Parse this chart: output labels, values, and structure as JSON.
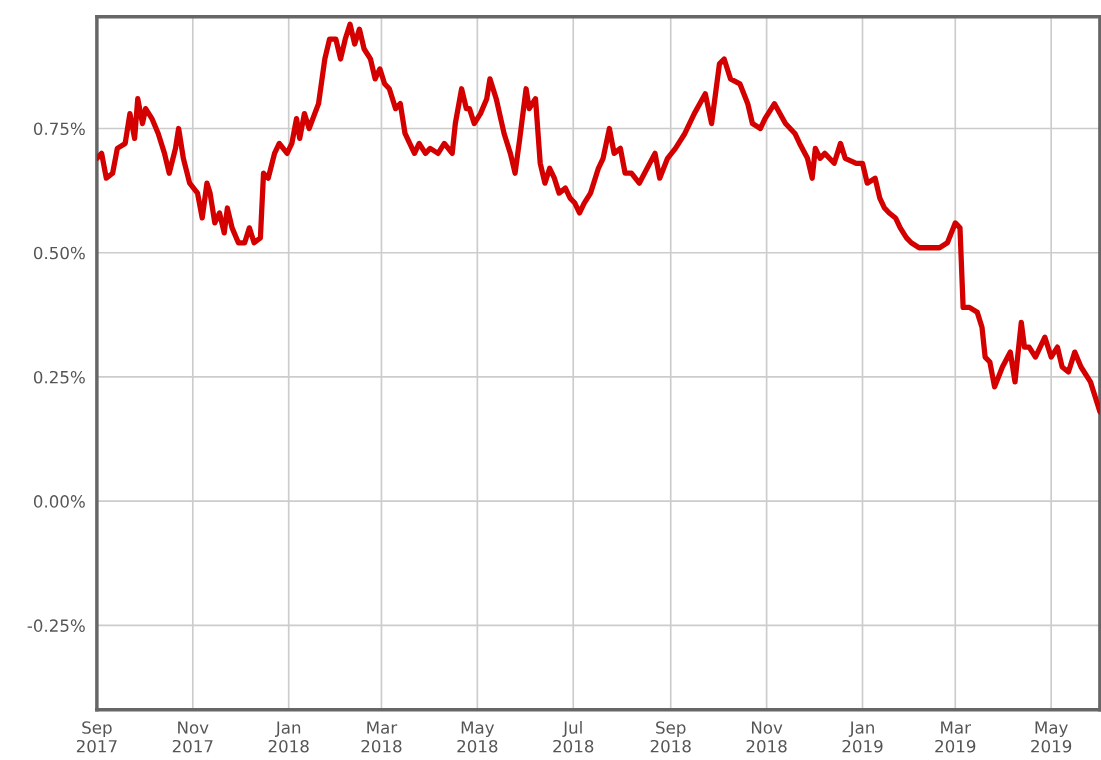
{
  "chart_data": {
    "type": "line",
    "x": [
      "2017-09-01",
      "2017-09-04",
      "2017-09-07",
      "2017-09-11",
      "2017-09-14",
      "2017-09-19",
      "2017-09-22",
      "2017-09-25",
      "2017-09-27",
      "2017-09-30",
      "2017-10-02",
      "2017-10-06",
      "2017-10-10",
      "2017-10-14",
      "2017-10-17",
      "2017-10-21",
      "2017-10-23",
      "2017-10-26",
      "2017-10-30",
      "2017-11-04",
      "2017-11-07",
      "2017-11-10",
      "2017-11-12",
      "2017-11-15",
      "2017-11-18",
      "2017-11-21",
      "2017-11-23",
      "2017-11-26",
      "2017-11-30",
      "2017-12-04",
      "2017-12-07",
      "2017-12-10",
      "2017-12-14",
      "2017-12-16",
      "2017-12-19",
      "2017-12-23",
      "2017-12-26",
      "2017-12-31",
      "2018-01-03",
      "2018-01-06",
      "2018-01-08",
      "2018-01-11",
      "2018-01-14",
      "2018-01-20",
      "2018-01-24",
      "2018-01-27",
      "2018-01-31",
      "2018-02-03",
      "2018-02-06",
      "2018-02-09",
      "2018-02-12",
      "2018-02-15",
      "2018-02-18",
      "2018-02-22",
      "2018-02-25",
      "2018-02-28",
      "2018-03-03",
      "2018-03-06",
      "2018-03-10",
      "2018-03-13",
      "2018-03-16",
      "2018-03-19",
      "2018-03-22",
      "2018-03-25",
      "2018-03-29",
      "2018-04-01",
      "2018-04-06",
      "2018-04-10",
      "2018-04-15",
      "2018-04-17",
      "2018-04-21",
      "2018-04-24",
      "2018-04-26",
      "2018-04-29",
      "2018-05-03",
      "2018-05-07",
      "2018-05-09",
      "2018-05-13",
      "2018-05-18",
      "2018-05-22",
      "2018-05-25",
      "2018-05-28",
      "2018-06-01",
      "2018-06-03",
      "2018-06-07",
      "2018-06-10",
      "2018-06-13",
      "2018-06-16",
      "2018-06-19",
      "2018-06-22",
      "2018-06-26",
      "2018-06-29",
      "2018-07-02",
      "2018-07-05",
      "2018-07-08",
      "2018-07-12",
      "2018-07-17",
      "2018-07-20",
      "2018-07-24",
      "2018-07-27",
      "2018-07-31",
      "2018-08-03",
      "2018-08-07",
      "2018-08-12",
      "2018-08-17",
      "2018-08-22",
      "2018-08-25",
      "2018-08-30",
      "2018-09-04",
      "2018-09-10",
      "2018-09-16",
      "2018-09-23",
      "2018-09-27",
      "2018-10-02",
      "2018-10-05",
      "2018-10-09",
      "2018-10-15",
      "2018-10-20",
      "2018-10-23",
      "2018-10-28",
      "2018-10-31",
      "2018-11-06",
      "2018-11-13",
      "2018-11-19",
      "2018-11-22",
      "2018-11-27",
      "2018-11-30",
      "2018-12-02",
      "2018-12-05",
      "2018-12-08",
      "2018-12-14",
      "2018-12-18",
      "2018-12-21",
      "2018-12-28",
      "2019-01-01",
      "2019-01-04",
      "2019-01-09",
      "2019-01-12",
      "2019-01-15",
      "2019-01-18",
      "2019-01-22",
      "2019-01-25",
      "2019-01-29",
      "2019-02-01",
      "2019-02-06",
      "2019-02-19",
      "2019-02-24",
      "2019-03-01",
      "2019-03-04",
      "2019-03-06",
      "2019-03-10",
      "2019-03-15",
      "2019-03-18",
      "2019-03-20",
      "2019-03-23",
      "2019-03-26",
      "2019-03-31",
      "2019-04-05",
      "2019-04-08",
      "2019-04-12",
      "2019-04-14",
      "2019-04-17",
      "2019-04-21",
      "2019-04-27",
      "2019-05-01",
      "2019-05-05",
      "2019-05-08",
      "2019-05-12",
      "2019-05-16",
      "2019-05-20",
      "2019-05-26",
      "2019-05-29",
      "2019-06-01"
    ],
    "series": [
      {
        "color": "#d40000",
        "values": [
          0.69,
          0.7,
          0.65,
          0.66,
          0.71,
          0.72,
          0.78,
          0.73,
          0.81,
          0.76,
          0.79,
          0.77,
          0.74,
          0.7,
          0.66,
          0.71,
          0.75,
          0.69,
          0.64,
          0.62,
          0.57,
          0.64,
          0.62,
          0.56,
          0.58,
          0.54,
          0.59,
          0.55,
          0.52,
          0.52,
          0.55,
          0.52,
          0.53,
          0.66,
          0.65,
          0.7,
          0.72,
          0.7,
          0.72,
          0.77,
          0.73,
          0.78,
          0.75,
          0.8,
          0.89,
          0.93,
          0.93,
          0.89,
          0.93,
          0.96,
          0.92,
          0.95,
          0.91,
          0.89,
          0.85,
          0.87,
          0.84,
          0.83,
          0.79,
          0.8,
          0.74,
          0.72,
          0.7,
          0.72,
          0.7,
          0.71,
          0.7,
          0.72,
          0.7,
          0.76,
          0.83,
          0.79,
          0.79,
          0.76,
          0.78,
          0.81,
          0.85,
          0.81,
          0.74,
          0.7,
          0.66,
          0.73,
          0.83,
          0.79,
          0.81,
          0.68,
          0.64,
          0.67,
          0.65,
          0.62,
          0.63,
          0.61,
          0.6,
          0.58,
          0.6,
          0.62,
          0.67,
          0.69,
          0.75,
          0.7,
          0.71,
          0.66,
          0.66,
          0.64,
          0.67,
          0.7,
          0.65,
          0.69,
          0.71,
          0.74,
          0.78,
          0.82,
          0.76,
          0.88,
          0.89,
          0.85,
          0.84,
          0.8,
          0.76,
          0.75,
          0.77,
          0.8,
          0.76,
          0.74,
          0.72,
          0.69,
          0.65,
          0.71,
          0.69,
          0.7,
          0.68,
          0.72,
          0.69,
          0.68,
          0.68,
          0.64,
          0.65,
          0.61,
          0.59,
          0.58,
          0.57,
          0.55,
          0.53,
          0.52,
          0.51,
          0.51,
          0.52,
          0.56,
          0.55,
          0.39,
          0.39,
          0.38,
          0.35,
          0.29,
          0.28,
          0.23,
          0.27,
          0.3,
          0.24,
          0.36,
          0.31,
          0.31,
          0.29,
          0.33,
          0.29,
          0.31,
          0.27,
          0.26,
          0.3,
          0.27,
          0.24,
          0.21,
          0.18
        ]
      }
    ],
    "xlim": [
      "2017-09-01",
      "2019-06-01"
    ],
    "xticks": [
      {
        "value": "2017-09-01",
        "label": "Sep\n2017"
      },
      {
        "value": "2017-11-01",
        "label": "Nov\n2017"
      },
      {
        "value": "2018-01-01",
        "label": "Jan\n2018"
      },
      {
        "value": "2018-03-01",
        "label": "Mar\n2018"
      },
      {
        "value": "2018-05-01",
        "label": "May\n2018"
      },
      {
        "value": "2018-07-01",
        "label": "Jul\n2018"
      },
      {
        "value": "2018-09-01",
        "label": "Sep\n2018"
      },
      {
        "value": "2018-11-01",
        "label": "Nov\n2018"
      },
      {
        "value": "2019-01-01",
        "label": "Jan\n2019"
      },
      {
        "value": "2019-03-01",
        "label": "Mar\n2019"
      },
      {
        "value": "2019-05-01",
        "label": "May\n2019"
      }
    ],
    "ylim": [
      -0.42,
      0.975
    ],
    "yticks": [
      {
        "value": -0.25,
        "label": "-0.25%"
      },
      {
        "value": 0.0,
        "label": "0.00%"
      },
      {
        "value": 0.25,
        "label": "0.25%"
      },
      {
        "value": 0.5,
        "label": "0.50%"
      },
      {
        "value": 0.75,
        "label": "0.75%"
      }
    ],
    "grid": true,
    "line_style": "solid"
  }
}
